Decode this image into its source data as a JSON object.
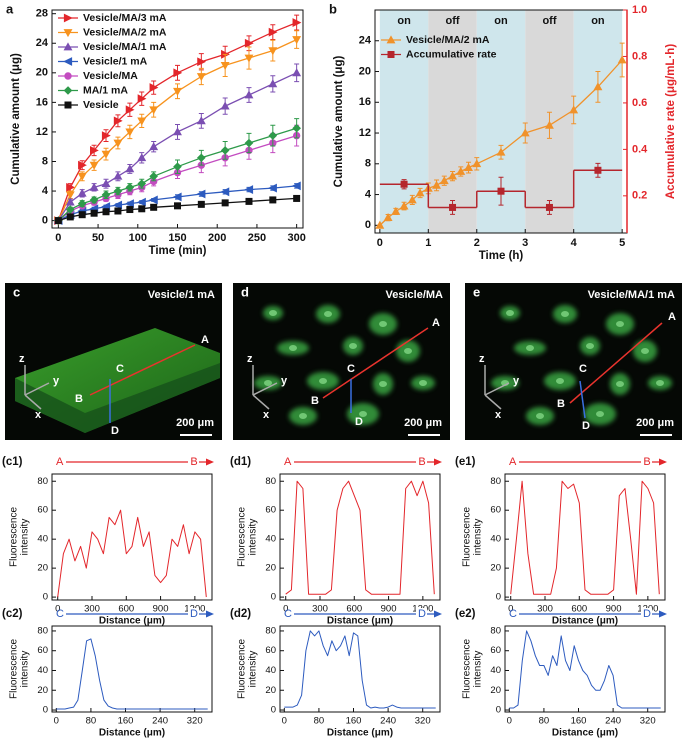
{
  "chart_data": [
    {
      "type": "line",
      "panel_label": "a",
      "xlabel": "Time (min)",
      "ylabel": "Cumulative amount (μg)",
      "xlim": [
        -8,
        308
      ],
      "xticks": [
        0,
        50,
        100,
        150,
        200,
        250,
        300
      ],
      "ylim": [
        -1,
        28.5
      ],
      "yticks": [
        0,
        4,
        8,
        12,
        16,
        20,
        24,
        28
      ],
      "legend": "upper left",
      "x": [
        0,
        15,
        30,
        45,
        60,
        75,
        90,
        105,
        120,
        150,
        180,
        210,
        240,
        270,
        300
      ],
      "series": [
        {
          "name": "Vesicle/MA/3 mA",
          "color": "#e3262b",
          "marker": "triangle-right",
          "values": [
            0,
            4.5,
            7.5,
            9.5,
            11.5,
            13.5,
            15,
            16.5,
            18,
            20,
            21.5,
            22.5,
            24,
            25.5,
            26.8
          ],
          "errors": [
            0,
            0.5,
            0.6,
            0.7,
            0.8,
            0.8,
            0.9,
            0.9,
            0.9,
            1,
            1.1,
            1.1,
            1,
            1,
            1
          ]
        },
        {
          "name": "Vesicle/MA/2 mA",
          "color": "#f7931e",
          "marker": "triangle-down",
          "values": [
            0,
            3.5,
            6,
            7.5,
            9,
            10.5,
            12,
            13.5,
            15,
            17.5,
            19.5,
            21,
            22,
            23,
            24.5
          ],
          "errors": [
            0,
            0.5,
            0.6,
            0.7,
            0.8,
            0.8,
            0.9,
            0.9,
            1,
            1,
            1.1,
            1.5,
            1.5,
            1.4,
            1.2
          ]
        },
        {
          "name": "Vesicle/MA/1 mA",
          "color": "#7b4fb2",
          "marker": "triangle-up",
          "values": [
            0,
            2.5,
            3.7,
            4.5,
            5,
            6,
            7,
            8.5,
            10,
            12,
            13.5,
            15.5,
            17,
            18.5,
            20
          ],
          "errors": [
            0,
            0.4,
            0.5,
            0.5,
            0.6,
            0.6,
            0.6,
            0.7,
            0.7,
            1,
            1,
            1.1,
            1,
            1.1,
            1.2
          ]
        },
        {
          "name": "Vesicle/1 mA",
          "color": "#2d5bbf",
          "marker": "triangle-left",
          "values": [
            0,
            0.8,
            1.3,
            1.6,
            1.9,
            2.1,
            2.3,
            2.5,
            2.8,
            3.2,
            3.6,
            3.9,
            4.2,
            4.4,
            4.7
          ],
          "errors": [
            0,
            0.2,
            0.2,
            0.2,
            0.2,
            0.2,
            0.2,
            0.2,
            0.2,
            0.3,
            0.3,
            0.3,
            0.3,
            0.3,
            0.3
          ]
        },
        {
          "name": "Vesicle/MA",
          "color": "#c34cc0",
          "marker": "circle",
          "values": [
            0,
            1.3,
            2,
            2.5,
            3,
            3.5,
            4,
            4.5,
            5.3,
            6.5,
            7.5,
            8.5,
            9.5,
            10.5,
            11.5
          ],
          "errors": [
            0,
            0.3,
            0.3,
            0.4,
            0.4,
            0.5,
            0.5,
            0.6,
            0.6,
            0.8,
            1,
            1.1,
            1.2,
            1.3,
            1.4
          ]
        },
        {
          "name": "MA/1 mA",
          "color": "#2e9a4a",
          "marker": "diamond",
          "values": [
            0,
            1.5,
            2.3,
            2.8,
            3.5,
            4,
            4.5,
            5,
            6,
            7.3,
            8.5,
            9.5,
            10.5,
            11.5,
            12.5
          ],
          "errors": [
            0,
            0.3,
            0.4,
            0.4,
            0.5,
            0.5,
            0.5,
            0.6,
            0.6,
            0.9,
            1,
            1.2,
            1.3,
            1.4,
            1.3
          ]
        },
        {
          "name": "Vesicle",
          "color": "#111111",
          "marker": "square",
          "values": [
            0,
            0.5,
            0.8,
            1,
            1.2,
            1.3,
            1.5,
            1.6,
            1.8,
            2,
            2.2,
            2.4,
            2.6,
            2.8,
            3
          ],
          "errors": [
            0,
            0.1,
            0.1,
            0.1,
            0.1,
            0.1,
            0.1,
            0.1,
            0.1,
            0.1,
            0.1,
            0.1,
            0.1,
            0.1,
            0.1
          ]
        }
      ]
    },
    {
      "type": "line",
      "panel_label": "b",
      "xlabel": "Time (h)",
      "ylabel": "Cumulative amount (μg)",
      "y2label": "Accumulative rate (μg/mL·h)",
      "y2_color": "#e3262b",
      "xlim": [
        -0.1,
        5.1
      ],
      "xticks": [
        0,
        1,
        2,
        3,
        4,
        5
      ],
      "ylim": [
        -1,
        28
      ],
      "yticks": [
        0,
        4,
        8,
        12,
        16,
        20,
        24
      ],
      "y2lim": [
        0.04,
        1.0
      ],
      "y2ticks": [
        0.2,
        0.4,
        0.6,
        0.8,
        {
          "value": 1,
          "label": "1.0"
        }
      ],
      "legend": "upper left",
      "phases": [
        {
          "label": "on",
          "start": 0,
          "end": 1,
          "color": "#cfe6ec"
        },
        {
          "label": "off",
          "start": 1,
          "end": 2,
          "color": "#d9d9d9"
        },
        {
          "label": "on",
          "start": 2,
          "end": 3,
          "color": "#cfe6ec"
        },
        {
          "label": "off",
          "start": 3,
          "end": 4,
          "color": "#d9d9d9"
        },
        {
          "label": "on",
          "start": 4,
          "end": 5,
          "color": "#cfe6ec"
        }
      ],
      "series": [
        {
          "name": "Vesicle/MA/2 mA",
          "color": "#f0922b",
          "marker": "triangle-up",
          "x": [
            0,
            0.17,
            0.33,
            0.5,
            0.67,
            0.83,
            1,
            1.17,
            1.33,
            1.5,
            1.67,
            1.83,
            2,
            2.5,
            3,
            3.5,
            4,
            4.5,
            5
          ],
          "values": [
            0,
            1,
            1.8,
            2.5,
            3.3,
            4.2,
            4.8,
            5.2,
            5.8,
            6.4,
            7,
            7.5,
            8,
            9.5,
            12,
            13,
            15,
            18,
            21.5
          ],
          "errors": [
            0,
            0.4,
            0.4,
            0.5,
            0.6,
            0.6,
            0.7,
            0.7,
            0.6,
            0.6,
            0.6,
            0.7,
            0.8,
            0.9,
            1.3,
            1.7,
            1.8,
            2,
            2.2
          ]
        },
        {
          "name": "Accumulative rate",
          "color": "#b5262d",
          "marker": "square",
          "axis": "y2",
          "step": true,
          "x": [
            0.5,
            1.5,
            2.5,
            3.5,
            4.5
          ],
          "values": [
            0.25,
            0.15,
            0.22,
            0.15,
            0.31
          ],
          "errors": [
            0.02,
            0.03,
            0.06,
            0.03,
            0.03
          ]
        }
      ]
    },
    {
      "type": "line",
      "panel_label": "(c1)",
      "start_label": "A",
      "end_label": "B",
      "arrow_color": "#e3262b",
      "xlabel": "Distance (μm)",
      "ylabel_lines": [
        "Fluorescence",
        "intensity"
      ],
      "xlim": [
        -50,
        1350
      ],
      "xticks": [
        0,
        300,
        600,
        900,
        1200
      ],
      "ylim": [
        -2,
        85
      ],
      "yticks": [
        0,
        20,
        40,
        60,
        80
      ],
      "x": [
        0,
        50,
        100,
        150,
        200,
        250,
        300,
        350,
        400,
        450,
        500,
        550,
        600,
        650,
        700,
        750,
        800,
        850,
        900,
        950,
        1000,
        1050,
        1100,
        1150,
        1200,
        1250,
        1300
      ],
      "series": [
        {
          "color": "#e3262b",
          "values": [
            0,
            30,
            40,
            25,
            35,
            20,
            45,
            40,
            30,
            55,
            50,
            60,
            30,
            35,
            55,
            35,
            45,
            15,
            10,
            15,
            40,
            35,
            50,
            30,
            45,
            40,
            0
          ]
        }
      ]
    },
    {
      "type": "line",
      "panel_label": "(d1)",
      "start_label": "A",
      "end_label": "B",
      "arrow_color": "#e3262b",
      "xlabel": "Distance (μm)",
      "ylabel_lines": [
        "Fluorescence",
        "intensity"
      ],
      "xlim": [
        -50,
        1350
      ],
      "xticks": [
        0,
        300,
        600,
        900,
        1200
      ],
      "ylim": [
        -2,
        85
      ],
      "yticks": [
        0,
        20,
        40,
        60,
        80
      ],
      "x": [
        0,
        50,
        100,
        150,
        200,
        250,
        300,
        350,
        400,
        450,
        500,
        550,
        600,
        650,
        700,
        750,
        800,
        850,
        900,
        950,
        1000,
        1050,
        1100,
        1150,
        1200,
        1250,
        1300
      ],
      "series": [
        {
          "color": "#e3262b",
          "values": [
            2,
            5,
            80,
            75,
            2,
            2,
            2,
            2,
            5,
            60,
            75,
            80,
            70,
            60,
            5,
            2,
            2,
            2,
            2,
            2,
            2,
            75,
            80,
            70,
            80,
            65,
            2
          ]
        }
      ]
    },
    {
      "type": "line",
      "panel_label": "(e1)",
      "start_label": "A",
      "end_label": "B",
      "arrow_color": "#e3262b",
      "xlabel": "Distance (μm)",
      "ylabel_lines": [
        "Fluorescence",
        "intensity"
      ],
      "xlim": [
        -50,
        1350
      ],
      "xticks": [
        0,
        300,
        600,
        900,
        1200
      ],
      "ylim": [
        -2,
        85
      ],
      "yticks": [
        0,
        20,
        40,
        60,
        80
      ],
      "x": [
        0,
        50,
        100,
        150,
        200,
        250,
        300,
        350,
        400,
        450,
        500,
        550,
        600,
        650,
        700,
        750,
        800,
        850,
        900,
        950,
        1000,
        1050,
        1100,
        1150,
        1200,
        1250,
        1300
      ],
      "series": [
        {
          "color": "#e3262b",
          "values": [
            2,
            40,
            80,
            30,
            2,
            2,
            2,
            2,
            20,
            80,
            75,
            78,
            65,
            5,
            2,
            2,
            2,
            2,
            5,
            70,
            75,
            40,
            2,
            80,
            75,
            65,
            2
          ]
        }
      ]
    },
    {
      "type": "line",
      "panel_label": "(c2)",
      "start_label": "C",
      "end_label": "D",
      "arrow_color": "#2d5bbf",
      "xlabel": "Distance (μm)",
      "ylabel_lines": [
        "Fluorescence",
        "intensity"
      ],
      "xlim": [
        -10,
        360
      ],
      "xticks": [
        0,
        80,
        160,
        240,
        320
      ],
      "ylim": [
        -2,
        85
      ],
      "yticks": [
        0,
        20,
        40,
        60,
        80
      ],
      "x": [
        0,
        10,
        20,
        30,
        40,
        50,
        60,
        70,
        80,
        90,
        100,
        110,
        120,
        130,
        140,
        150,
        160,
        170,
        180,
        190,
        200,
        210,
        220,
        230,
        240,
        250,
        260,
        270,
        280,
        290,
        300,
        310,
        320,
        330,
        340,
        350
      ],
      "series": [
        {
          "color": "#2d5bbf",
          "values": [
            1,
            1,
            1,
            2,
            3,
            10,
            40,
            70,
            72,
            55,
            30,
            10,
            4,
            2,
            1,
            1,
            1,
            1,
            1,
            1,
            1,
            1,
            1,
            1,
            1,
            1,
            1,
            1,
            1,
            1,
            1,
            1,
            1,
            1,
            1,
            1
          ]
        }
      ]
    },
    {
      "type": "line",
      "panel_label": "(d2)",
      "start_label": "C",
      "end_label": "D",
      "arrow_color": "#2d5bbf",
      "xlabel": "Distance (μm)",
      "ylabel_lines": [
        "Fluorescence",
        "intensity"
      ],
      "xlim": [
        -10,
        360
      ],
      "xticks": [
        0,
        80,
        160,
        240,
        320
      ],
      "ylim": [
        -2,
        85
      ],
      "yticks": [
        0,
        20,
        40,
        60,
        80
      ],
      "x": [
        0,
        10,
        20,
        30,
        40,
        50,
        60,
        70,
        80,
        90,
        100,
        110,
        120,
        130,
        140,
        150,
        160,
        170,
        180,
        190,
        200,
        210,
        220,
        230,
        240,
        250,
        260,
        270,
        280,
        290,
        300,
        310,
        320,
        330,
        340,
        350
      ],
      "series": [
        {
          "color": "#2d5bbf",
          "values": [
            3,
            3,
            3,
            5,
            15,
            60,
            80,
            75,
            80,
            65,
            55,
            70,
            60,
            65,
            75,
            55,
            78,
            75,
            30,
            5,
            2,
            3,
            2,
            2,
            3,
            5,
            3,
            2,
            2,
            2,
            2,
            2,
            2,
            2,
            2,
            2
          ]
        }
      ]
    },
    {
      "type": "line",
      "panel_label": "(e2)",
      "start_label": "C",
      "end_label": "D",
      "arrow_color": "#2d5bbf",
      "xlabel": "Distance (μm)",
      "ylabel_lines": [
        "Fluorescence",
        "intensity"
      ],
      "xlim": [
        -10,
        360
      ],
      "xticks": [
        0,
        80,
        160,
        240,
        320
      ],
      "ylim": [
        -2,
        85
      ],
      "yticks": [
        0,
        20,
        40,
        60,
        80
      ],
      "x": [
        0,
        10,
        20,
        30,
        40,
        50,
        60,
        70,
        80,
        90,
        100,
        110,
        120,
        130,
        140,
        150,
        160,
        170,
        180,
        190,
        200,
        210,
        220,
        230,
        240,
        250,
        260,
        270,
        280,
        290,
        300,
        310,
        320,
        330,
        340,
        350
      ],
      "series": [
        {
          "color": "#2d5bbf",
          "values": [
            2,
            2,
            5,
            50,
            80,
            70,
            55,
            45,
            45,
            35,
            55,
            45,
            75,
            50,
            40,
            65,
            50,
            40,
            35,
            25,
            20,
            20,
            30,
            45,
            35,
            5,
            2,
            2,
            2,
            2,
            2,
            2,
            2,
            2,
            2,
            2
          ]
        }
      ]
    }
  ],
  "images": [
    {
      "panel_label": "c",
      "title": "Vesicle/1 mA",
      "points": [
        "A",
        "B",
        "C",
        "D"
      ],
      "axes": [
        "z",
        "y",
        "x"
      ],
      "scale_bar": "200 μm"
    },
    {
      "panel_label": "d",
      "title": "Vesicle/MA",
      "points": [
        "A",
        "B",
        "C",
        "D"
      ],
      "axes": [
        "z",
        "y",
        "x"
      ],
      "scale_bar": "200 μm"
    },
    {
      "panel_label": "e",
      "title": "Vesicle/MA/1 mA",
      "points": [
        "A",
        "B",
        "C",
        "D"
      ],
      "axes": [
        "z",
        "y",
        "x"
      ],
      "scale_bar": "200 μm"
    }
  ]
}
